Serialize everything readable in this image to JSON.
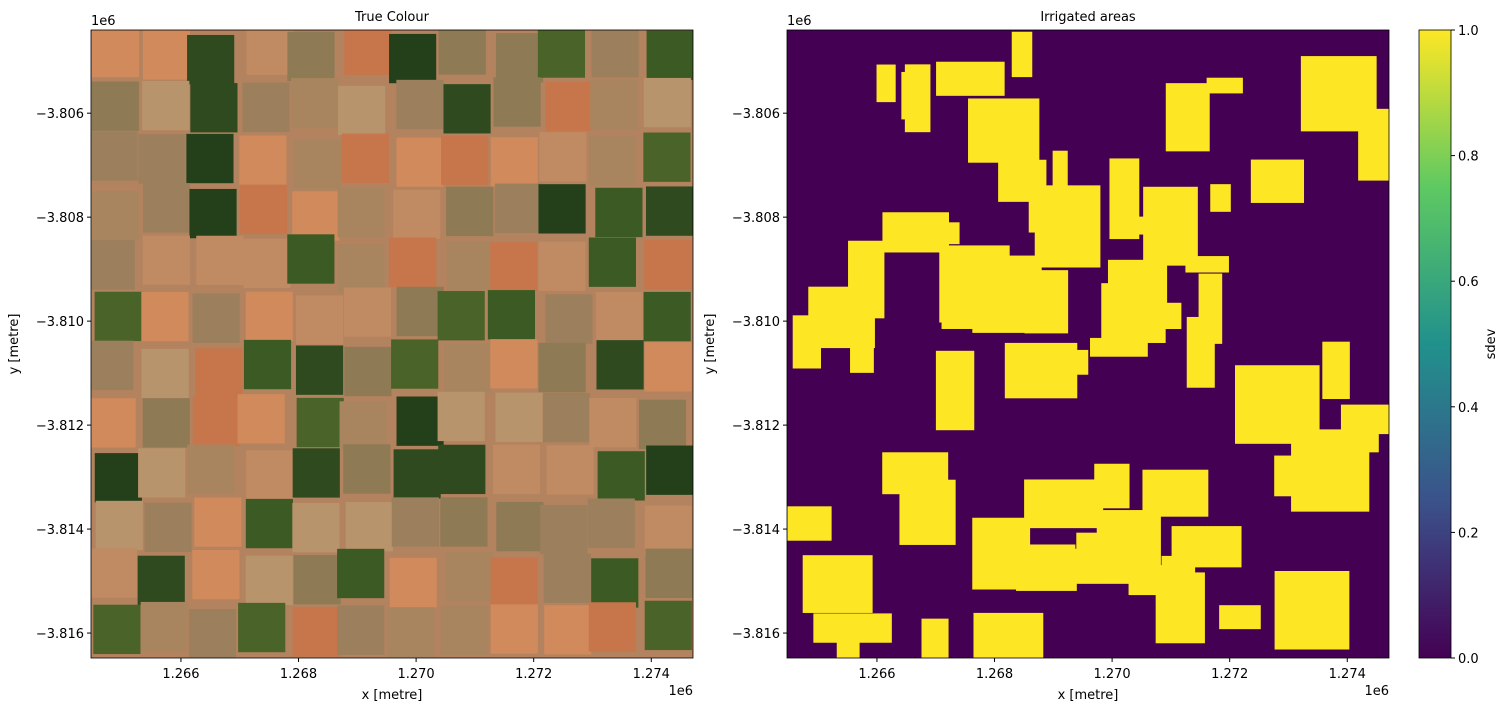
{
  "chart_data": [
    {
      "type": "image",
      "title": "True Colour",
      "xlabel": "x [metre]",
      "ylabel": "y [metre]",
      "x_offset": "1e6",
      "y_offset": "1e6",
      "xlim": [
        1.26447,
        1.27471
      ],
      "ylim": [
        -3.81648,
        -3.8044
      ],
      "xticks": [
        1.266,
        1.268,
        {
          "value": 1.27,
          "label": "1.270"
        },
        1.272,
        1.274
      ],
      "yticks": [
        {
          "value": -3.806,
          "label": "−3.806"
        },
        {
          "value": -3.808,
          "label": "−3.808"
        },
        {
          "value": -3.81,
          "label": "−3.810"
        },
        {
          "value": -3.812,
          "label": "−3.812"
        },
        {
          "value": -3.814,
          "label": "−3.814"
        },
        {
          "value": -3.816,
          "label": "−3.816"
        }
      ]
    },
    {
      "type": "image",
      "title": "Irrigated areas",
      "xlabel": "x [metre]",
      "ylabel": "y [metre]",
      "x_offset": "1e6",
      "y_offset": "1e6",
      "xlim": [
        1.26447,
        1.27471
      ],
      "ylim": [
        -3.81648,
        -3.8044
      ],
      "xticks": [
        1.266,
        1.268,
        {
          "value": 1.27,
          "label": "1.270"
        },
        1.272,
        1.274
      ],
      "yticks": [
        {
          "value": -3.806,
          "label": "−3.806"
        },
        {
          "value": -3.808,
          "label": "−3.808"
        },
        {
          "value": -3.81,
          "label": "−3.810"
        },
        {
          "value": -3.812,
          "label": "−3.812"
        },
        {
          "value": -3.814,
          "label": "−3.814"
        },
        {
          "value": -3.816,
          "label": "−3.816"
        }
      ],
      "colorbar": {
        "label": "sdev",
        "lim": [
          0,
          1
        ],
        "ticks": [
          {
            "value": 0,
            "label": "0.0"
          },
          {
            "value": 0.2,
            "label": "0.2"
          },
          {
            "value": 0.4,
            "label": "0.4"
          },
          {
            "value": 0.6,
            "label": "0.6"
          },
          {
            "value": 0.8,
            "label": "0.8"
          },
          {
            "value": 1,
            "label": "1.0"
          }
        ],
        "colormap": [
          "#440154",
          "#3b528b",
          "#21918c",
          "#5ec962",
          "#fde725"
        ]
      }
    }
  ]
}
